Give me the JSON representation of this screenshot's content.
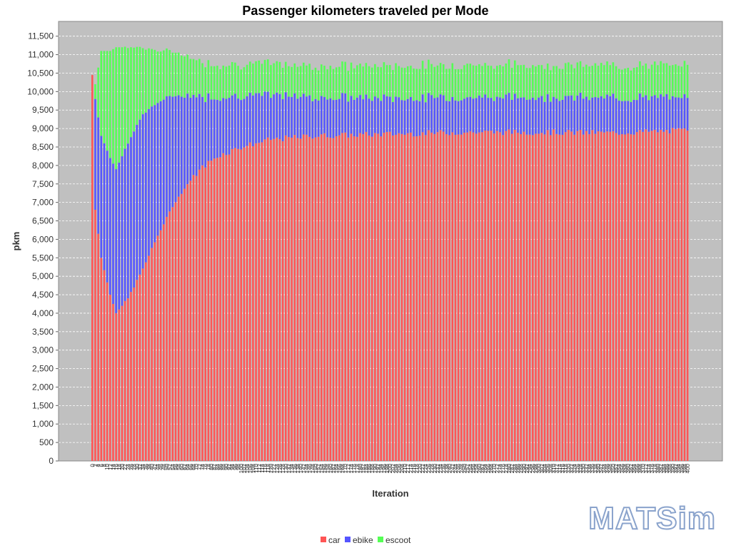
{
  "logo": {
    "text": "MATSim"
  },
  "colors": {
    "car": "#ff5555",
    "ebike": "#5555ff",
    "escoot": "#55ff55",
    "plot_bg": "#c0c0c0",
    "grid": "#ffffff"
  },
  "chart_data": {
    "type": "bar",
    "stacked": true,
    "title": "Passenger kilometers traveled per Mode",
    "xlabel": "Iteration",
    "ylabel": "pkm",
    "ylim": [
      0,
      11900
    ],
    "yticks": [
      0,
      500,
      1000,
      1500,
      2000,
      2500,
      3000,
      3500,
      4000,
      4500,
      5000,
      5500,
      6000,
      6500,
      7000,
      7500,
      8000,
      8500,
      9000,
      9500,
      10000,
      10500,
      11000,
      11500
    ],
    "ytick_labels": [
      "0",
      "500",
      "1,000",
      "1,500",
      "2,000",
      "2,500",
      "3,000",
      "3,500",
      "4,000",
      "4,500",
      "5,000",
      "5,500",
      "6,000",
      "6,500",
      "7,000",
      "7,500",
      "8,000",
      "8,500",
      "9,000",
      "9,500",
      "10,000",
      "10,500",
      "11,000",
      "11,500"
    ],
    "grid": true,
    "legend": "bottom-center",
    "x_start": 0,
    "x_end": 400,
    "x_step": 2,
    "series_names": [
      "car",
      "ebike",
      "escoot"
    ],
    "car_keypoints": [
      [
        0,
        10450
      ],
      [
        2,
        6800
      ],
      [
        6,
        5500
      ],
      [
        12,
        4500
      ],
      [
        16,
        4000
      ],
      [
        24,
        4400
      ],
      [
        34,
        5200
      ],
      [
        44,
        6100
      ],
      [
        54,
        6900
      ],
      [
        64,
        7500
      ],
      [
        74,
        7950
      ],
      [
        84,
        8250
      ],
      [
        100,
        8500
      ],
      [
        120,
        8700
      ],
      [
        150,
        8800
      ],
      [
        200,
        8850
      ],
      [
        250,
        8900
      ],
      [
        300,
        8900
      ],
      [
        350,
        8880
      ],
      [
        400,
        8950
      ]
    ],
    "ebike_keypoints": [
      [
        0,
        0
      ],
      [
        2,
        3000
      ],
      [
        6,
        3300
      ],
      [
        12,
        3700
      ],
      [
        16,
        3900
      ],
      [
        24,
        4200
      ],
      [
        34,
        4200
      ],
      [
        44,
        3600
      ],
      [
        54,
        3000
      ],
      [
        64,
        2400
      ],
      [
        74,
        1900
      ],
      [
        84,
        1600
      ],
      [
        100,
        1400
      ],
      [
        120,
        1200
      ],
      [
        150,
        1050
      ],
      [
        200,
        970
      ],
      [
        250,
        950
      ],
      [
        300,
        950
      ],
      [
        350,
        950
      ],
      [
        400,
        880
      ]
    ],
    "escoot_keypoints": [
      [
        0,
        0
      ],
      [
        2,
        400
      ],
      [
        6,
        2300
      ],
      [
        12,
        2900
      ],
      [
        16,
        3300
      ],
      [
        24,
        2600
      ],
      [
        34,
        1800
      ],
      [
        44,
        1400
      ],
      [
        54,
        1200
      ],
      [
        64,
        1050
      ],
      [
        74,
        950
      ],
      [
        84,
        900
      ],
      [
        100,
        850
      ],
      [
        120,
        850
      ],
      [
        150,
        850
      ],
      [
        200,
        880
      ],
      [
        250,
        880
      ],
      [
        300,
        870
      ],
      [
        350,
        880
      ],
      [
        400,
        880
      ]
    ]
  }
}
